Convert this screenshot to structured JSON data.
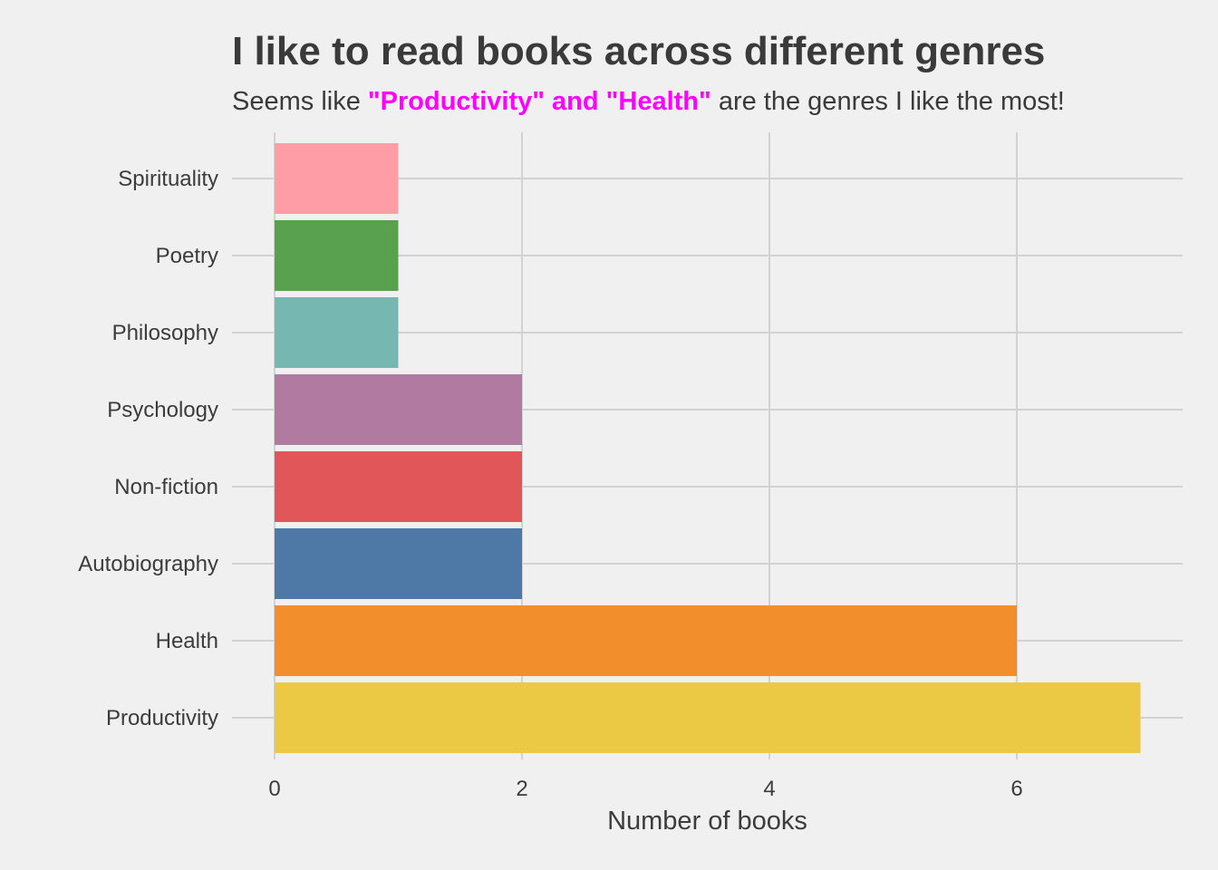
{
  "chart_data": {
    "type": "bar",
    "orientation": "horizontal",
    "title": "I like to read books across different genres",
    "subtitle": {
      "prefix": "Seems like ",
      "highlight": "\"Productivity\" and \"Health\"",
      "suffix": " are the genres I like the most!",
      "highlight_color": "#ff00ff"
    },
    "xlabel": "Number of books",
    "ylabel": "",
    "xlim": [
      0,
      7.3
    ],
    "xticks": [
      0,
      2,
      4,
      6
    ],
    "grid": true,
    "categories": [
      "Productivity",
      "Health",
      "Autobiography",
      "Non-fiction",
      "Psychology",
      "Philosophy",
      "Poetry",
      "Spirituality"
    ],
    "values": [
      7,
      6,
      2,
      2,
      2,
      1,
      1,
      1
    ],
    "colors": [
      "#ebc944",
      "#f28e2c",
      "#4e79a7",
      "#e15759",
      "#b07aa1",
      "#76b7b2",
      "#59a14f",
      "#ff9da7"
    ]
  }
}
